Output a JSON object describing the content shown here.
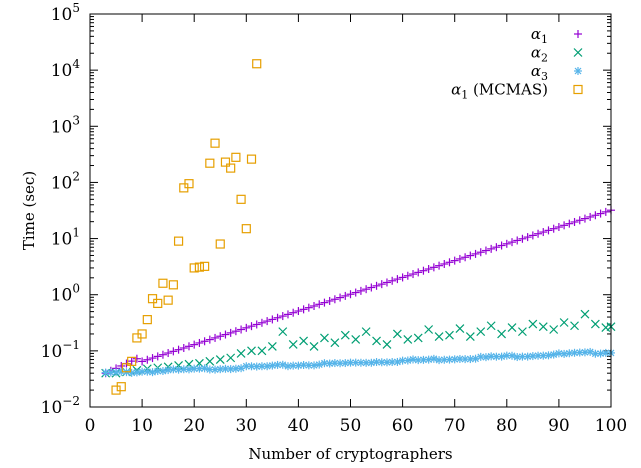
{
  "chart_data": {
    "type": "scatter",
    "title": "",
    "xlabel": "Number of cryptographers",
    "ylabel": "Time (sec)",
    "xlim": [
      0,
      100
    ],
    "ylim": [
      0.01,
      100000
    ],
    "yscale": "log",
    "xticks": [
      0,
      10,
      20,
      30,
      40,
      50,
      60,
      70,
      80,
      90,
      100
    ],
    "yticks": [
      {
        "value": 0.01,
        "base": "10",
        "exp": "−2"
      },
      {
        "value": 0.1,
        "base": "10",
        "exp": "−1"
      },
      {
        "value": 1,
        "base": "10",
        "exp": "0"
      },
      {
        "value": 10,
        "base": "10",
        "exp": "1"
      },
      {
        "value": 100,
        "base": "10",
        "exp": "2"
      },
      {
        "value": 1000,
        "base": "10",
        "exp": "3"
      },
      {
        "value": 10000,
        "base": "10",
        "exp": "4"
      },
      {
        "value": 100000,
        "base": "10",
        "exp": "5"
      }
    ],
    "grid": false,
    "legend_position": "top-right",
    "series": [
      {
        "name": "α1",
        "name_base": "α",
        "name_sub": "1",
        "name_suffix": "",
        "marker": "plus",
        "color": "#9400d3",
        "x_start": 3,
        "x_end": 100,
        "y_start": 0.04,
        "y_end": 32,
        "notes_points": "exponential growth from 0.04s at n=3 to ~32s at n=100",
        "x": [],
        "y": []
      },
      {
        "name": "α2",
        "name_base": "α",
        "name_sub": "2",
        "name_suffix": "",
        "marker": "cross",
        "color": "#009e73",
        "x": [
          3,
          5,
          7,
          9,
          11,
          13,
          15,
          17,
          19,
          21,
          23,
          25,
          27,
          29,
          31,
          33,
          35,
          37,
          39,
          41,
          43,
          45,
          47,
          49,
          51,
          53,
          55,
          57,
          59,
          61,
          63,
          65,
          67,
          69,
          71,
          73,
          75,
          77,
          79,
          81,
          83,
          85,
          87,
          89,
          91,
          93,
          95,
          97,
          99,
          100
        ],
        "y": [
          0.04,
          0.04,
          0.042,
          0.045,
          0.048,
          0.05,
          0.052,
          0.055,
          0.058,
          0.06,
          0.065,
          0.07,
          0.075,
          0.09,
          0.1,
          0.1,
          0.12,
          0.22,
          0.13,
          0.15,
          0.12,
          0.17,
          0.14,
          0.19,
          0.16,
          0.22,
          0.15,
          0.13,
          0.2,
          0.16,
          0.17,
          0.24,
          0.18,
          0.19,
          0.25,
          0.18,
          0.22,
          0.28,
          0.2,
          0.26,
          0.22,
          0.3,
          0.27,
          0.24,
          0.32,
          0.28,
          0.45,
          0.3,
          0.26,
          0.27
        ]
      },
      {
        "name": "α3",
        "name_base": "α",
        "name_sub": "3",
        "name_suffix": "",
        "marker": "star",
        "color": "#56b4e9",
        "x_start": 3,
        "x_end": 100,
        "y_start": 0.04,
        "y_end": 0.095,
        "x": [],
        "y": []
      },
      {
        "name": "α1 (MCMAS)",
        "name_base": "α",
        "name_sub": "1",
        "name_suffix": " (MCMAS)",
        "marker": "square",
        "color": "#e69f00",
        "x": [
          5,
          6,
          7,
          8,
          9,
          10,
          11,
          12,
          13,
          14,
          15,
          16,
          17,
          18,
          19,
          20,
          21,
          22,
          23,
          24,
          25,
          26,
          27,
          28,
          29,
          30,
          31,
          32
        ],
        "y": [
          0.02,
          0.023,
          0.05,
          0.065,
          0.17,
          0.2,
          0.36,
          0.85,
          0.7,
          1.6,
          0.8,
          1.5,
          9,
          80,
          95,
          3.0,
          3.1,
          3.2,
          220,
          500,
          8,
          230,
          180,
          280,
          50,
          15,
          260,
          13000
        ]
      }
    ]
  }
}
